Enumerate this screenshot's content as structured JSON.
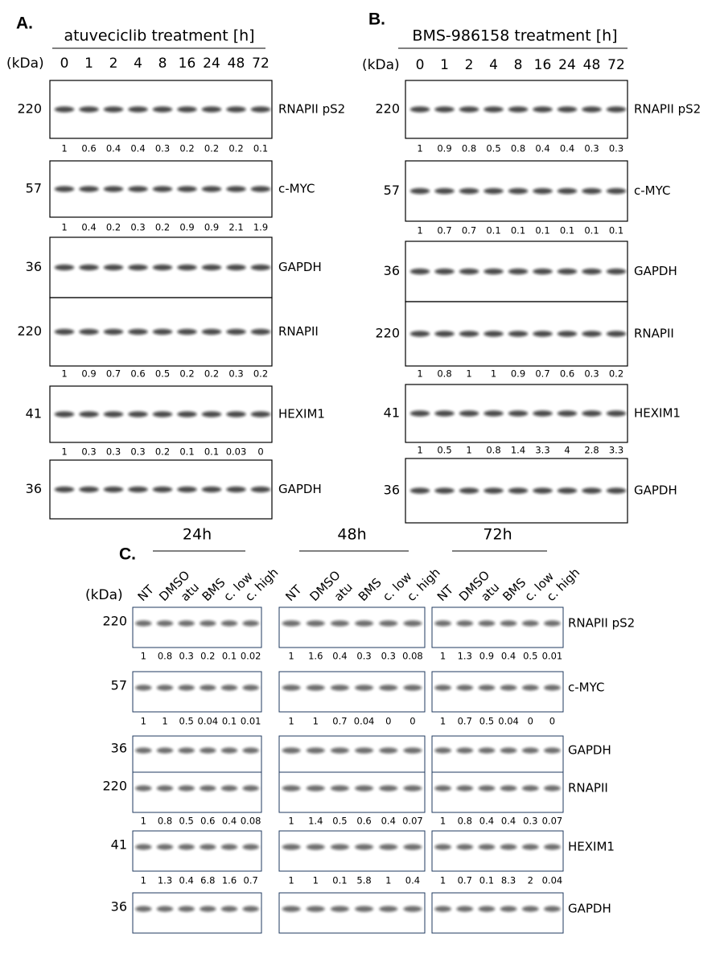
{
  "panels": [
    {
      "label": "A.",
      "title": "atuveciclib treatment [h]",
      "unit": "(kDa)",
      "lanes": [
        "0",
        "1",
        "2",
        "4",
        "8",
        "16",
        "24",
        "48",
        "72"
      ],
      "blots": [
        {
          "kda": "220",
          "protein": "RNAPII pS2",
          "quant": [
            1,
            0.6,
            0.4,
            0.4,
            0.3,
            0.2,
            0.2,
            0.2,
            0.1
          ]
        },
        {
          "kda": "57",
          "protein": "c-MYC",
          "quant": [
            1,
            0.4,
            0.2,
            0.3,
            0.2,
            0.9,
            0.9,
            2.1,
            1.9
          ]
        },
        {
          "kda": "36",
          "protein": "GAPDH"
        },
        {
          "kda": "220",
          "protein": "RNAPII",
          "quant": [
            1,
            0.9,
            0.7,
            0.6,
            0.5,
            0.2,
            0.2,
            0.3,
            0.2
          ]
        },
        {
          "kda": "41",
          "protein": "HEXIM1",
          "quant": [
            1,
            0.3,
            0.3,
            0.3,
            0.2,
            0.1,
            0.1,
            0.03,
            0
          ]
        },
        {
          "kda": "36",
          "protein": "GAPDH"
        }
      ]
    },
    {
      "label": "B.",
      "title": "BMS-986158 treatment [h]",
      "unit": "(kDa)",
      "lanes": [
        "0",
        "1",
        "2",
        "4",
        "8",
        "16",
        "24",
        "48",
        "72"
      ],
      "blots": [
        {
          "kda": "220",
          "protein": "RNAPII pS2",
          "quant": [
            1,
            0.9,
            0.8,
            0.5,
            0.8,
            0.4,
            0.4,
            0.3,
            0.3
          ]
        },
        {
          "kda": "57",
          "protein": "c-MYC",
          "quant": [
            1,
            0.7,
            0.7,
            0.1,
            0.1,
            0.1,
            0.1,
            0.1,
            0.1
          ]
        },
        {
          "kda": "36",
          "protein": "GAPDH"
        },
        {
          "kda": "220",
          "protein": "RNAPII",
          "quant": [
            1,
            0.8,
            1,
            1,
            0.9,
            0.7,
            0.6,
            0.3,
            0.2
          ]
        },
        {
          "kda": "41",
          "protein": "HEXIM1",
          "quant": [
            1,
            0.5,
            1,
            0.8,
            1.4,
            3.3,
            4,
            2.8,
            3.3
          ]
        },
        {
          "kda": "36",
          "protein": "GAPDH"
        }
      ]
    }
  ],
  "panel_c": {
    "label": "C.",
    "unit": "(kDa)",
    "groups": [
      {
        "title": "24h",
        "lanes": [
          "NT",
          "DMSO",
          "atu",
          "BMS",
          "c. low",
          "c. high"
        ]
      },
      {
        "title": "48h",
        "lanes": [
          "NT",
          "DMSO",
          "atu",
          "BMS",
          "c. low",
          "c. high"
        ]
      },
      {
        "title": "72h",
        "lanes": [
          "NT",
          "DMSO",
          "atu",
          "BMS",
          "c. low",
          "c. high"
        ]
      }
    ],
    "blots": [
      {
        "kda": "220",
        "protein": "RNAPII pS2",
        "quant": [
          [
            1,
            0.8,
            0.3,
            0.2,
            0.1,
            0.02
          ],
          [
            1,
            1.6,
            0.4,
            0.3,
            0.3,
            0.08
          ],
          [
            1,
            1.3,
            0.9,
            0.4,
            0.5,
            0.01
          ]
        ]
      },
      {
        "kda": "57",
        "protein": "c-MYC",
        "quant": [
          [
            1,
            1,
            0.5,
            0.04,
            0.1,
            0.01
          ],
          [
            1,
            1,
            0.7,
            0.04,
            0,
            0
          ],
          [
            1,
            0.7,
            0.5,
            0.04,
            0,
            0
          ]
        ]
      },
      {
        "kda": "36",
        "protein": "GAPDH"
      },
      {
        "kda": "220",
        "protein": "RNAPII",
        "quant": [
          [
            1,
            0.8,
            0.5,
            0.6,
            0.4,
            0.08
          ],
          [
            1,
            1.4,
            0.5,
            0.6,
            0.4,
            0.07
          ],
          [
            1,
            0.8,
            0.4,
            0.4,
            0.3,
            0.07
          ]
        ]
      },
      {
        "kda": "41",
        "protein": "HEXIM1",
        "quant": [
          [
            1,
            1.3,
            0.4,
            6.8,
            1.6,
            0.7
          ],
          [
            1,
            1,
            0.1,
            5.8,
            1,
            0.4
          ],
          [
            1,
            0.7,
            0.1,
            8.3,
            2,
            0.04
          ]
        ]
      },
      {
        "kda": "36",
        "protein": "GAPDH"
      }
    ]
  }
}
